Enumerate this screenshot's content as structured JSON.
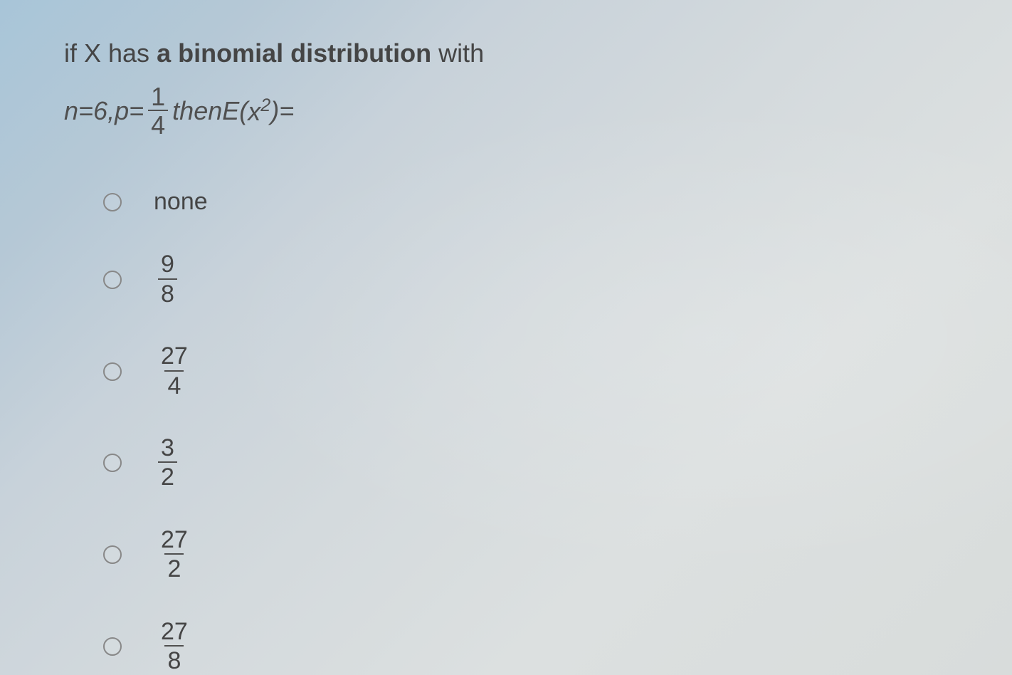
{
  "question": {
    "line1_prefix": "if X has ",
    "line1_bold": "a binomial distribution",
    "line1_suffix": " with",
    "line2_n": "n=6, ",
    "line2_p": "p",
    "line2_eq": " = ",
    "frac_num": "1",
    "frac_den": "4",
    "line2_then": " then ",
    "line2_E": "E",
    "line2_paren_open": "(",
    "line2_x": "x",
    "line2_sup": "2",
    "line2_paren_close": ")",
    "line2_equals": " ="
  },
  "options": {
    "opt1_text": "none",
    "opt2_num": "9",
    "opt2_den": "8",
    "opt3_num": "27",
    "opt3_den": "4",
    "opt4_num": "3",
    "opt4_den": "2",
    "opt5_num": "27",
    "opt5_den": "2",
    "opt6_num": "27",
    "opt6_den": "8"
  },
  "styling": {
    "background_gradient_start": "#a8c5d8",
    "background_gradient_end": "#d8dcdb",
    "text_color": "#454545",
    "radio_border_color": "#888",
    "fraction_bar_color": "#505050",
    "question_fontsize": 36,
    "option_fontsize": 34,
    "radio_size": 26
  }
}
